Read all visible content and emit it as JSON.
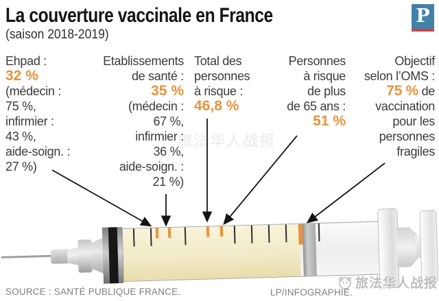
{
  "header": {
    "title": "La couverture vaccinale en France",
    "subtitle": "(saison 2018-2019)",
    "logo_letter": "P"
  },
  "colors": {
    "accent": "#e8923e",
    "logo_blue": "#4281a8",
    "logo_red": "#cf4540"
  },
  "stats": [
    {
      "id": "ehpad",
      "lines": [
        {
          "type": "label",
          "text": "Ehpad :"
        },
        {
          "type": "value",
          "text": "32 %"
        },
        {
          "type": "detail",
          "text": "(médecin :"
        },
        {
          "type": "detail",
          "text": "75 %,"
        },
        {
          "type": "detail",
          "text": "infirmier :"
        },
        {
          "type": "detail",
          "text": "43 %,"
        },
        {
          "type": "detail",
          "text": "aide-soign. :"
        },
        {
          "type": "detail",
          "text": "27 %)"
        }
      ]
    },
    {
      "id": "etablissements-de-sante",
      "lines": [
        {
          "type": "label",
          "text": "Etablissements"
        },
        {
          "type": "label",
          "text": "de santé :"
        },
        {
          "type": "value",
          "text": "35 %"
        },
        {
          "type": "detail",
          "text": "(médecin :"
        },
        {
          "type": "detail",
          "text": "67 %,"
        },
        {
          "type": "detail",
          "text": "infirmier :"
        },
        {
          "type": "detail",
          "text": "36 %,"
        },
        {
          "type": "detail",
          "text": "aide-soign. :"
        },
        {
          "type": "detail",
          "text": "21 %)"
        }
      ]
    },
    {
      "id": "total-personnes-a-risque",
      "lines": [
        {
          "type": "label",
          "text": "Total des"
        },
        {
          "type": "label",
          "text": "personnes"
        },
        {
          "type": "label",
          "text": "à risque :"
        },
        {
          "type": "value",
          "text": "46,8 %"
        }
      ]
    },
    {
      "id": "personnes-plus-65-ans",
      "lines": [
        {
          "type": "label",
          "text": "Personnes"
        },
        {
          "type": "label",
          "text": "à risque"
        },
        {
          "type": "label",
          "text": "de plus"
        },
        {
          "type": "label",
          "text": "de 65 ans :"
        },
        {
          "type": "value",
          "text": "51 %"
        }
      ]
    },
    {
      "id": "objectif-oms",
      "lines": [
        {
          "type": "label",
          "text": "Objectif"
        },
        {
          "type": "label",
          "text": "selon l’OMS :"
        },
        {
          "type": "mixed",
          "value": "75 %",
          "text": " de"
        },
        {
          "type": "label",
          "text": "vaccination"
        },
        {
          "type": "label",
          "text": "pour les"
        },
        {
          "type": "label",
          "text": "personnes"
        },
        {
          "type": "label",
          "text": "fragiles"
        }
      ]
    }
  ],
  "chart_data": {
    "type": "table",
    "title": "La couverture vaccinale en France (saison 2018-2019)",
    "unit": "%",
    "categories": [
      "Ehpad",
      "Etablissements de santé",
      "Total des personnes à risque",
      "Personnes à risque de plus de 65 ans",
      "Objectif selon l’OMS (vaccination pour les personnes fragiles)"
    ],
    "values": [
      32,
      35,
      46.8,
      51,
      75
    ],
    "sub_data": {
      "Ehpad": {
        "médecin": 75,
        "infirmier": 43,
        "aide-soign.": 27
      },
      "Etablissements de santé": {
        "médecin": 67,
        "infirmier": 36,
        "aide-soign.": 21
      }
    },
    "layout_hints": {
      "representation": "syringe gauge with orange tick marks",
      "accent_color": "#e8923e"
    }
  },
  "footer": {
    "source": "SOURCE : SANTÉ PUBLIQUE FRANCE.",
    "credit": "LP/INFOGRAPHIE."
  },
  "watermark": {
    "text": "旅法华人战报"
  }
}
